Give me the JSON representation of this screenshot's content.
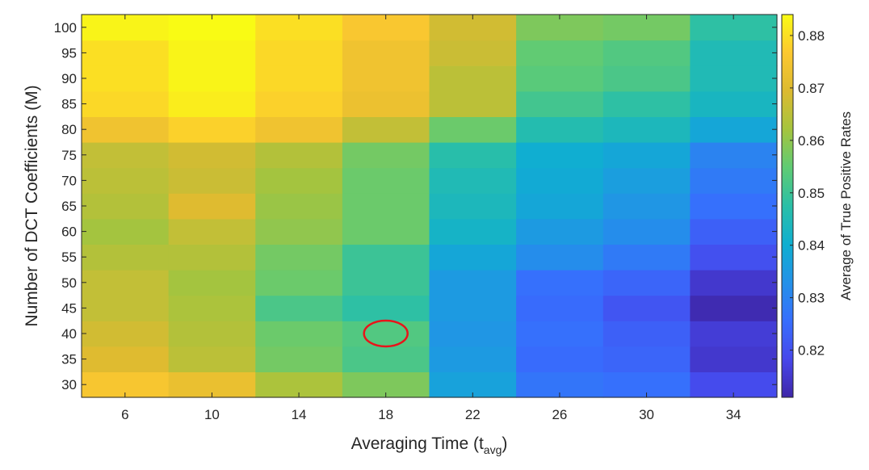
{
  "chart_data": {
    "type": "heatmap",
    "x": [
      6,
      10,
      14,
      18,
      22,
      26,
      30,
      34
    ],
    "y": [
      30,
      35,
      40,
      45,
      50,
      55,
      60,
      65,
      70,
      75,
      80,
      85,
      90,
      95,
      100
    ],
    "x_tick_labels": [
      "6",
      "10",
      "14",
      "18",
      "22",
      "26",
      "30",
      "34"
    ],
    "y_tick_labels": [
      "30",
      "35",
      "40",
      "45",
      "50",
      "55",
      "60",
      "65",
      "70",
      "75",
      "80",
      "85",
      "90",
      "95",
      "100"
    ],
    "z": [
      [
        0.8755,
        0.8725,
        0.863,
        0.858,
        0.837,
        0.827,
        0.826,
        0.819
      ],
      [
        0.87,
        0.865,
        0.857,
        0.852,
        0.835,
        0.825,
        0.824,
        0.815
      ],
      [
        0.868,
        0.864,
        0.856,
        0.853,
        0.834,
        0.826,
        0.823,
        0.816
      ],
      [
        0.866,
        0.863,
        0.852,
        0.848,
        0.835,
        0.825,
        0.821,
        0.812
      ],
      [
        0.866,
        0.862,
        0.856,
        0.85,
        0.835,
        0.826,
        0.824,
        0.815
      ],
      [
        0.864,
        0.864,
        0.857,
        0.85,
        0.838,
        0.832,
        0.828,
        0.82
      ],
      [
        0.862,
        0.866,
        0.86,
        0.856,
        0.842,
        0.835,
        0.832,
        0.823
      ],
      [
        0.864,
        0.87,
        0.861,
        0.856,
        0.844,
        0.838,
        0.834,
        0.826
      ],
      [
        0.865,
        0.867,
        0.862,
        0.856,
        0.845,
        0.839,
        0.836,
        0.828
      ],
      [
        0.866,
        0.868,
        0.864,
        0.857,
        0.847,
        0.84,
        0.838,
        0.83
      ],
      [
        0.874,
        0.878,
        0.874,
        0.866,
        0.856,
        0.846,
        0.844,
        0.838
      ],
      [
        0.879,
        0.882,
        0.878,
        0.873,
        0.865,
        0.851,
        0.848,
        0.843
      ],
      [
        0.88,
        0.883,
        0.879,
        0.874,
        0.865,
        0.854,
        0.852,
        0.845
      ],
      [
        0.88,
        0.883,
        0.879,
        0.874,
        0.867,
        0.855,
        0.853,
        0.845
      ],
      [
        0.883,
        0.884,
        0.88,
        0.876,
        0.868,
        0.858,
        0.857,
        0.848
      ]
    ],
    "xlabel_main": "Averaging Time (t",
    "xlabel_sub": "avg",
    "xlabel_close": ")",
    "ylabel": "Number of DCT Coefficients (M)",
    "colorbar": {
      "label": "Average of True Positive Rates",
      "min": 0.811,
      "max": 0.884,
      "ticks": [
        0.82,
        0.83,
        0.84,
        0.85,
        0.86,
        0.87,
        0.88
      ],
      "tick_labels": [
        "0.82",
        "0.83",
        "0.84",
        "0.85",
        "0.86",
        "0.87",
        "0.88"
      ],
      "colormap": "parula"
    },
    "annotation": {
      "shape": "ellipse",
      "x": 18,
      "y": 40,
      "color": "#e8141a"
    }
  }
}
